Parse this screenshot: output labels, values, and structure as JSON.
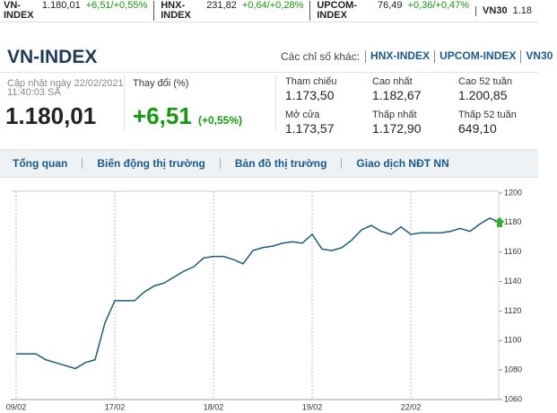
{
  "ticker": [
    {
      "name": "VN-INDEX",
      "price": "1.180,01",
      "change": "+6,51/+0,55%"
    },
    {
      "name": "HNX-INDEX",
      "price": "231,82",
      "change": "+0,64/+0,28%"
    },
    {
      "name": "UPCOM-INDEX",
      "price": "76,49",
      "change": "+0,36/+0,47%"
    },
    {
      "name": "VN30",
      "price": "1.18"
    }
  ],
  "header": {
    "title": "VN-INDEX",
    "others_label": "Các chỉ số khác:",
    "others": [
      "HNX-INDEX",
      "UPCOM-INDEX",
      "VN30"
    ]
  },
  "summary": {
    "updated_label": "Cập nhật ngày 22/02/2021",
    "updated_time": "11:40:03 SA",
    "price": "1.180,01",
    "change_label": "Thay đổi (%)",
    "change": "+6,51",
    "change_pct": "(+0,55%)"
  },
  "stats": [
    {
      "label": "Tham chiếu",
      "value": "1.173,50"
    },
    {
      "label": "Mở cửa",
      "value": "1.173,57"
    },
    {
      "label": "Cao nhất",
      "value": "1.182,67"
    },
    {
      "label": "Thấp nhất",
      "value": "1.172,90"
    },
    {
      "label": "Cao 52 tuần",
      "value": "1.200,85"
    },
    {
      "label": "Thấp 52 tuần",
      "value": "649,10"
    }
  ],
  "tabs": [
    "Tổng quan",
    "Biến động thị trường",
    "Bản đồ thị trường",
    "Giao dịch NĐT NN"
  ],
  "chart_data": {
    "type": "line",
    "color": "#1d5c76",
    "x": [
      0,
      1,
      2,
      3,
      4,
      5,
      6,
      7,
      8,
      9,
      10,
      11,
      12,
      13,
      14,
      15,
      16,
      17,
      18,
      19,
      20,
      21,
      22,
      23,
      24,
      25,
      26,
      27,
      28,
      29,
      30,
      31,
      32,
      33,
      34,
      35,
      36,
      37,
      38,
      39,
      40,
      41,
      42,
      43,
      44,
      45,
      46,
      47,
      48,
      49
    ],
    "values": [
      1091,
      1091,
      1091,
      1087,
      1085,
      1083,
      1081,
      1085,
      1087,
      1112,
      1127,
      1127,
      1127,
      1133,
      1137,
      1139,
      1143,
      1147,
      1150,
      1156,
      1157,
      1157,
      1155,
      1152,
      1161,
      1163,
      1164,
      1166,
      1167,
      1166,
      1172,
      1162,
      1161,
      1163,
      1168,
      1175,
      1178,
      1174,
      1172,
      1177,
      1172,
      1173,
      1173,
      1173,
      1174,
      1176,
      1174,
      1179,
      1183,
      1180
    ],
    "xlim": [
      0,
      49
    ],
    "xticks": [
      {
        "value": 0,
        "label": "09/02"
      },
      {
        "value": 10,
        "label": "17/02"
      },
      {
        "value": 20,
        "label": "18/02"
      },
      {
        "value": 30,
        "label": "19/02"
      },
      {
        "value": 40,
        "label": "22/02"
      }
    ],
    "ylim": [
      1060,
      1200
    ],
    "yticks": [
      1060,
      1080,
      1100,
      1120,
      1140,
      1160,
      1180,
      1200
    ]
  }
}
